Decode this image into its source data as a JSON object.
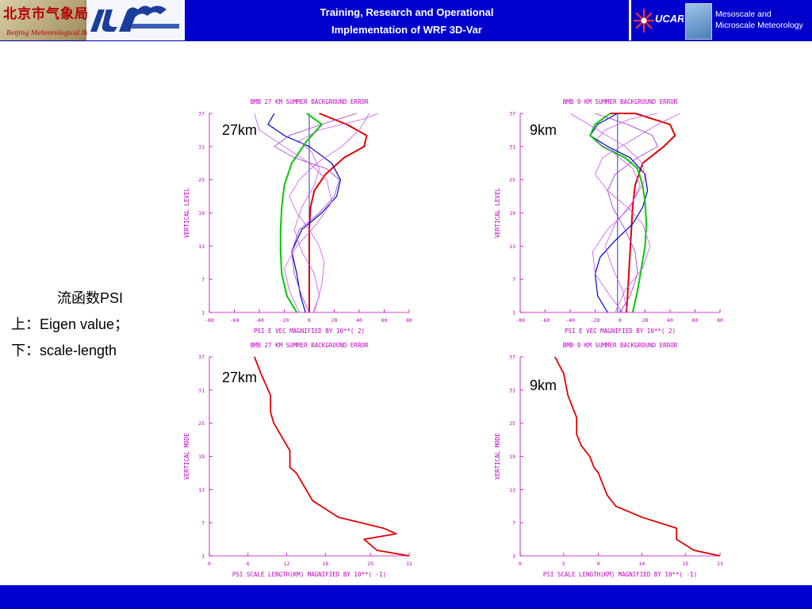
{
  "header": {
    "title_line1": "Training, Research and Operational",
    "title_line2": "Implementation of WRF 3D-Var",
    "logo_left_main": "北京市气象局",
    "logo_left_sub": "Beijing Meteorological Bureau",
    "logo_ucar_text": "UCAR",
    "logo_right_line1": "Mesoscale and",
    "logo_right_line2": "Microscale Meteorology"
  },
  "side": {
    "line1": "流函数PSI",
    "line2": "上：Eigen value；",
    "line3": "下：scale-length"
  },
  "colors": {
    "header_blue": "#0000cc",
    "axis_magenta": "#c000c0",
    "red": "#e00000",
    "blue": "#0000cc",
    "green": "#00cc00",
    "purple": "#9933cc",
    "violet": "#cc55ee"
  },
  "chart_data": [
    {
      "id": "ev27",
      "type": "line",
      "title": "BMB 27 KM SUMMER BACKGROUND ERROR",
      "xlabel": "PSI    E VEC MAGNIFIED BY 10**(  2)",
      "ylabel": "VERTICAL LEVEL",
      "km_label": "27km",
      "xlim": [
        -80,
        80
      ],
      "ylim": [
        1,
        37
      ],
      "x_ticks": [
        "-80",
        "-60",
        "-40",
        "-20",
        "0",
        "20",
        "40",
        "60",
        "80"
      ],
      "y_ticks": [
        "1",
        "7",
        "13",
        "19",
        "25",
        "31",
        "37"
      ],
      "zero_line": 0,
      "series": [
        {
          "color": "red",
          "width": 2,
          "x": [
            0,
            0,
            0,
            0,
            0,
            1,
            4,
            13,
            28,
            44,
            46,
            30,
            8
          ],
          "y": [
            1,
            4,
            8,
            12,
            16,
            20,
            23,
            26,
            29,
            31,
            33,
            35,
            37
          ]
        },
        {
          "color": "blue",
          "width": 1.2,
          "x": [
            -3,
            -7,
            -10,
            -14,
            -6,
            10,
            22,
            25,
            18,
            0,
            -20,
            -33,
            -28
          ],
          "y": [
            1,
            4,
            8,
            12,
            16,
            19,
            22,
            25,
            28,
            31,
            33,
            35,
            37
          ]
        },
        {
          "color": "green",
          "width": 2,
          "x": [
            -10,
            -18,
            -22,
            -23,
            -23,
            -22,
            -20,
            -14,
            -8,
            -2,
            6,
            10,
            -2
          ],
          "y": [
            1,
            4,
            8,
            12,
            16,
            20,
            24,
            28,
            30,
            32,
            34,
            35,
            37
          ]
        },
        {
          "color": "purple",
          "width": 0.8,
          "x": [
            0,
            -6,
            -12,
            -14,
            -8,
            8,
            20,
            24,
            14,
            -12,
            -28,
            -16,
            10,
            38
          ],
          "y": [
            1,
            4,
            8,
            12,
            16,
            19,
            22,
            25,
            27,
            29,
            31,
            33,
            35,
            37
          ]
        },
        {
          "color": "violet",
          "width": 0.8,
          "x": [
            3,
            8,
            4,
            -6,
            -12,
            -6,
            4,
            8,
            2,
            -8,
            8,
            44,
            55
          ],
          "y": [
            1,
            4,
            8,
            12,
            16,
            20,
            24,
            27,
            30,
            32,
            34,
            36,
            37
          ]
        },
        {
          "color": "violet",
          "width": 0.8,
          "x": [
            4,
            10,
            12,
            8,
            0,
            -10,
            -16,
            -8,
            6,
            26,
            40,
            48
          ],
          "y": [
            1,
            6,
            10,
            13,
            16,
            19,
            22,
            25,
            28,
            31,
            34,
            37
          ]
        },
        {
          "color": "violet",
          "width": 0.8,
          "x": [
            -8,
            -16,
            -20,
            -10,
            6,
            18,
            14,
            0,
            -20,
            -40,
            -44
          ],
          "y": [
            1,
            5,
            9,
            13,
            17,
            21,
            25,
            28,
            31,
            34,
            37
          ]
        }
      ]
    },
    {
      "id": "ev9",
      "type": "line",
      "title": "BMB 9 KM SUMMER BACKGROUND ERROR",
      "xlabel": "PSI    E VEC MAGNIFIED BY 10**(  2)",
      "ylabel": "VERTICAL LEVEL",
      "km_label": "9km",
      "xlim": [
        -80,
        80
      ],
      "ylim": [
        1,
        37
      ],
      "x_ticks": [
        "-80",
        "-60",
        "-40",
        "-20",
        "0",
        "20",
        "40",
        "60",
        "80"
      ],
      "y_ticks": [
        "1",
        "7",
        "13",
        "19",
        "25",
        "31",
        "37"
      ],
      "zero_line": -2,
      "series": [
        {
          "color": "red",
          "width": 2,
          "x": [
            5,
            6,
            7,
            8,
            9,
            10,
            12,
            18,
            35,
            44,
            40,
            12,
            -8
          ],
          "y": [
            1,
            4,
            8,
            12,
            16,
            20,
            24,
            28,
            31,
            33,
            35,
            37,
            37
          ]
        },
        {
          "color": "blue",
          "width": 1.2,
          "x": [
            -10,
            -18,
            -20,
            -16,
            -4,
            10,
            18,
            22,
            20,
            8,
            -10,
            -24,
            -18,
            -2
          ],
          "y": [
            1,
            4,
            8,
            11,
            14,
            17,
            20,
            23,
            26,
            29,
            31,
            33,
            35,
            37
          ]
        },
        {
          "color": "green",
          "width": 2,
          "x": [
            10,
            14,
            17,
            20,
            21,
            20,
            18,
            14,
            4,
            -14,
            -24,
            -20,
            -8
          ],
          "y": [
            1,
            5,
            9,
            13,
            17,
            21,
            24,
            27,
            29,
            31,
            33,
            35,
            37
          ]
        },
        {
          "color": "purple",
          "width": 0.8,
          "x": [
            0,
            8,
            14,
            12,
            4,
            -6,
            -10,
            -4,
            14,
            30,
            26,
            6,
            -20
          ],
          "y": [
            1,
            4,
            8,
            12,
            16,
            20,
            23,
            26,
            29,
            31,
            33,
            35,
            37
          ]
        },
        {
          "color": "violet",
          "width": 0.8,
          "x": [
            2,
            -8,
            -20,
            -22,
            -10,
            8,
            16,
            10,
            -6,
            -20,
            -12,
            8,
            30
          ],
          "y": [
            1,
            4,
            8,
            12,
            16,
            20,
            24,
            27,
            30,
            32,
            34,
            36,
            37
          ]
        },
        {
          "color": "violet",
          "width": 0.8,
          "x": [
            -4,
            4,
            18,
            24,
            18,
            6,
            -10,
            -20,
            -14,
            8,
            30,
            48
          ],
          "y": [
            1,
            5,
            9,
            13,
            17,
            20,
            23,
            26,
            29,
            32,
            35,
            37
          ]
        },
        {
          "color": "violet",
          "width": 0.8,
          "x": [
            6,
            2,
            -6,
            -12,
            -4,
            10,
            20,
            18,
            4,
            -18,
            -40
          ],
          "y": [
            1,
            5,
            9,
            13,
            17,
            21,
            25,
            28,
            31,
            34,
            37
          ]
        }
      ]
    },
    {
      "id": "sl27",
      "type": "line",
      "title": "BMB 27 KM SUMMER BACKGROUND ERROR",
      "xlabel": "PSI    SCALE LENGTH(KM) MAGNIFIED BY 10**( -1)",
      "ylabel": "VERTICAL MODE",
      "km_label": "27km",
      "xlim": [
        0,
        31
      ],
      "ylim": [
        1,
        37
      ],
      "x_ticks": [
        "0",
        "6",
        "12",
        "18",
        "25",
        "31"
      ],
      "y_ticks": [
        "1",
        "7",
        "13",
        "19",
        "25",
        "31",
        "37"
      ],
      "series": [
        {
          "color": "red",
          "width": 1.8,
          "x": [
            31,
            26,
            24,
            29,
            27,
            20,
            16,
            14.5,
            13.5,
            12.5,
            12.5,
            11.5,
            10,
            9.5,
            9.5,
            8,
            7
          ],
          "y": [
            1,
            2,
            4,
            5,
            6,
            8,
            11,
            14,
            16,
            17,
            20,
            22,
            25,
            27,
            30,
            34,
            37
          ]
        }
      ]
    },
    {
      "id": "sl9",
      "type": "line",
      "title": "BMB 9 KM SUMMER BACKGROUND ERROR",
      "xlabel": "PSI    SCALE LENGTH(KM) MAGNIFIED BY 10**( -1)",
      "ylabel": "VERTICAL MODE",
      "km_label": "9km",
      "xlim": [
        0,
        23
      ],
      "ylim": [
        1,
        37
      ],
      "x_ticks": [
        "0",
        "5",
        "9",
        "14",
        "19",
        "23"
      ],
      "y_ticks": [
        "1",
        "7",
        "13",
        "19",
        "25",
        "31",
        "37"
      ],
      "series": [
        {
          "color": "red",
          "width": 1.8,
          "x": [
            23,
            20,
            18,
            18,
            14,
            11,
            10,
            9.5,
            9,
            8.5,
            8,
            7,
            6.5,
            6.5,
            5.5,
            5,
            4
          ],
          "y": [
            1,
            2,
            4,
            6,
            8,
            10,
            12,
            14,
            16,
            17,
            19,
            21,
            23,
            26,
            30,
            34,
            37
          ]
        }
      ]
    }
  ]
}
